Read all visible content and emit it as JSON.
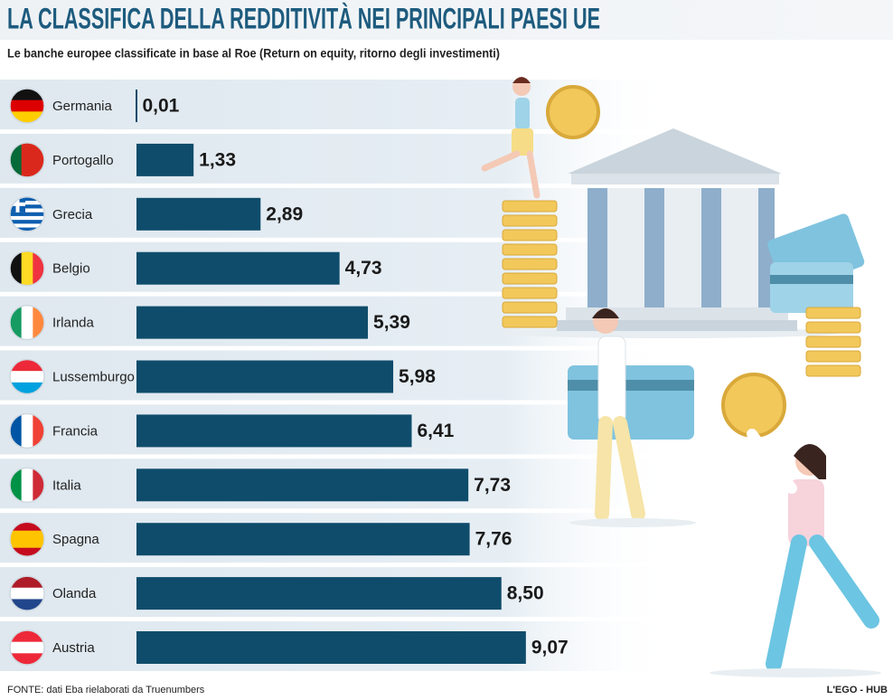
{
  "chart_data": {
    "type": "bar",
    "title": "LA CLASSIFICA DELLA REDDITIVITÀ NEI PRINCIPALI PAESI UE",
    "subtitle": "Le banche europee classificate in base al Roe (Return on equity, ritorno degli investimenti)",
    "categories": [
      "Germania",
      "Portogallo",
      "Grecia",
      "Belgio",
      "Irlanda",
      "Lussemburgo",
      "Francia",
      "Italia",
      "Spagna",
      "Olanda",
      "Austria"
    ],
    "values": [
      0.01,
      1.33,
      2.89,
      4.73,
      5.39,
      5.98,
      6.41,
      7.73,
      7.76,
      8.5,
      9.07
    ],
    "value_labels": [
      "0,01",
      "1,33",
      "2,89",
      "4,73",
      "5,39",
      "5,98",
      "6,41",
      "7,73",
      "7,76",
      "8,50",
      "9,07"
    ],
    "color": "#0f4c6b",
    "source": "FONTE: dati Eba rielaborati da Truenumbers",
    "credit": "L'EGO - HUB"
  }
}
